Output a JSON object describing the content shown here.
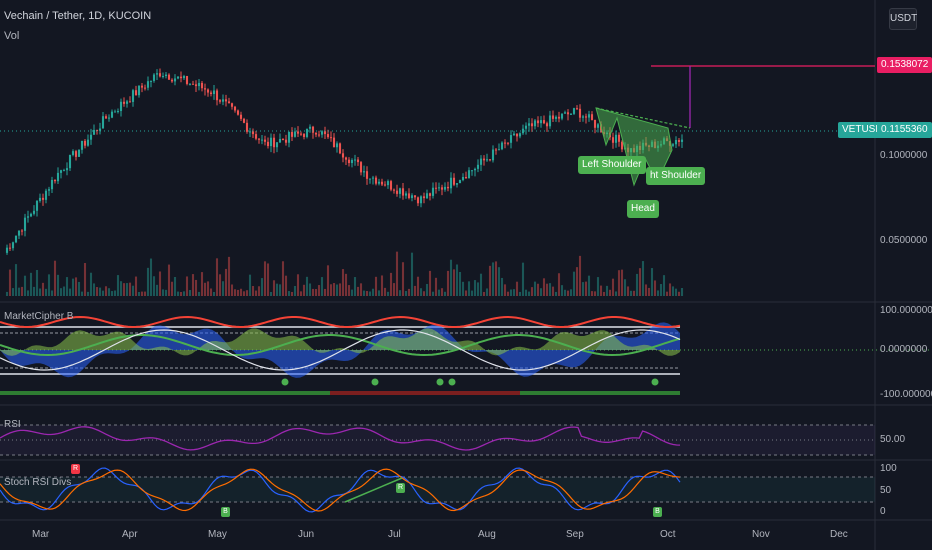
{
  "header": {
    "symbol_line": "Vechain / Tether, 1D, KUCOIN",
    "volume_label": "Vol",
    "currency_button": "USDT"
  },
  "price_axis": {
    "tick_labels": [
      "0.1000000",
      "0.0500000"
    ],
    "target_tag": "0.1538072",
    "last_price_tag": "0.1155360",
    "symbol_tag": "VETUSDT",
    "colors": {
      "target": "#e91e63",
      "last_price": "#26a69a"
    }
  },
  "pattern_labels": {
    "left_shoulder": "Left Shoulder",
    "head": "Head",
    "right_shoulder": "ht Shoulder"
  },
  "indicators": {
    "marketcipher": {
      "name": "MarketCipher B",
      "tick_labels": [
        "100.0000000",
        "0.0000000",
        "-100.0000000"
      ]
    },
    "rsi": {
      "name": "RSI",
      "tick_labels": [
        "50.00"
      ],
      "last_label": "R"
    },
    "stoch": {
      "name": "Stoch RSI Divs",
      "tick_labels": [
        "100",
        "50",
        "0"
      ],
      "markers": [
        "R",
        "B",
        "R",
        "B"
      ]
    }
  },
  "time_axis": {
    "labels": [
      "Mar",
      "Apr",
      "May",
      "Jun",
      "Jul",
      "Aug",
      "Sep",
      "Oct",
      "Nov",
      "Dec"
    ]
  },
  "chart_data": {
    "type": "candlestick",
    "title": "Vechain / Tether, 1D, KUCOIN",
    "x_months": [
      "Mar",
      "Apr",
      "May",
      "Jun",
      "Jul",
      "Aug",
      "Sep",
      "Oct",
      "Nov",
      "Dec"
    ],
    "price_series_approx_close": [
      {
        "month": "Mar",
        "value": 0.045
      },
      {
        "month": "Apr",
        "value": 0.085
      },
      {
        "month": "Apr-mid",
        "value": 0.14
      },
      {
        "month": "May",
        "value": 0.2
      },
      {
        "month": "May-mid",
        "value": 0.17
      },
      {
        "month": "Jun",
        "value": 0.11
      },
      {
        "month": "Jun-mid",
        "value": 0.125
      },
      {
        "month": "Jul",
        "value": 0.085
      },
      {
        "month": "Jul-mid",
        "value": 0.07
      },
      {
        "month": "Aug",
        "value": 0.09
      },
      {
        "month": "Aug-mid",
        "value": 0.125
      },
      {
        "month": "Sep",
        "value": 0.145
      },
      {
        "month": "Sep-mid",
        "value": 0.105
      },
      {
        "month": "Oct",
        "value": 0.1155
      }
    ],
    "annotations": {
      "target_price": 0.1538072,
      "last_price": 0.115536,
      "pattern": "inverse head and shoulders"
    },
    "scale": "log",
    "grid": false,
    "legend": "top-left"
  }
}
